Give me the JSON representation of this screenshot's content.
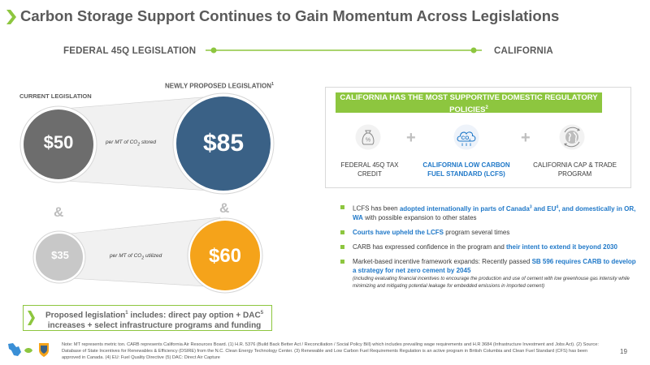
{
  "header": {
    "title": "Carbon Storage Support Continues to Gain Momentum Across Legislations"
  },
  "timeline": {
    "left_label": "FEDERAL 45Q LEGISLATION",
    "right_label": "CALIFORNIA"
  },
  "federal": {
    "current_label": "CURRENT LEGISLATION",
    "proposed_label": "NEWLY PROPOSED LEGISLATION",
    "proposed_sup": "1",
    "current_stored": "$50",
    "proposed_stored": "$85",
    "stored_note_pre": "per MT of CO",
    "stored_note_sub": "2",
    "stored_note_post": " stored",
    "ampersand": "&",
    "current_utilized": "$35",
    "proposed_utilized": "$60",
    "utilized_note_pre": "per MT of CO",
    "utilized_note_sub": "2",
    "utilized_note_post": " utilized",
    "bottom_text_1": "Proposed legislation",
    "bottom_sup_1": "1",
    "bottom_text_2": " includes: direct pay option + DAC",
    "bottom_sup_2": "5",
    "bottom_text_3": " increases + select infrastructure programs and funding"
  },
  "california": {
    "banner_text": "CALIFORNIA HAS THE MOST SUPPORTIVE DOMESTIC REGULATORY POLICIES",
    "banner_sup": "2",
    "plus": "+",
    "items": [
      {
        "label": "FEDERAL 45Q TAX CREDIT",
        "icon": "money-bag-icon"
      },
      {
        "label": "CALIFORNIA LOW CARBON FUEL STANDARD (LCFS)",
        "icon": "co2-cloud-icon"
      },
      {
        "label": "CALIFORNIA CAP & TRADE PROGRAM",
        "icon": "globe-recycle-icon"
      }
    ],
    "money_icon_text": "%",
    "co2_icon_text": "CO",
    "co2_icon_sub": "2",
    "bullets": {
      "b1_a": "LCFS has been ",
      "b1_b": "adopted internationally in parts of Canada",
      "b1_sup1": "3",
      "b1_c": " and EU",
      "b1_sup2": "4",
      "b1_d": ", and domestically in OR, WA",
      "b1_e": " with possible expansion to other states",
      "b2_a": "Courts have upheld the LCFS",
      "b2_b": " program several times",
      "b3_a": "CARB has expressed confidence in the program and ",
      "b3_b": "their intent to extend it beyond 2030",
      "b4_a": "Market-based incentive framework expands:  Recently passed ",
      "b4_b": "SB 596 requires CARB to develop a strategy for net zero cement by 2045",
      "b4_sub": "(including evaluating financial incentives to encourage the production and use of cement with low greenhouse gas intensity while minimizing and mitigating potential leakage for embedded emissions in imported cement)"
    }
  },
  "footer": {
    "note": "Note: MT represents metric ton. CARB represents California Air Resources Board. (1) H.R. 5376 (Build Back Better Act / Reconciliation / Social Policy Bill) which includes prevailing wage requirements and H.R 3684 (Infrastructure Investment and Jobs Act). (2) Source: Database of State Incentives for Renewables & Efficiency (DSIRE) from the N.C. Clean Energy Technology Center. (3) Renewable and Low Carbon Fuel Requirements Regulation is an active program in British Columbia and Clean Fuel Standard (CFS) has been approved in Canada. (4) EU: Fuel Quality Directive (5) DAC: Direct Air Capture",
    "page_number": "19"
  },
  "colors": {
    "green": "#8dc63f",
    "dark_gray_circle": "#6d6d6d",
    "navy_circle": "#3a6186",
    "light_gray_circle": "#c8c8c8",
    "orange_circle": "#f5a31a",
    "blue_highlight": "#1f78c8"
  }
}
